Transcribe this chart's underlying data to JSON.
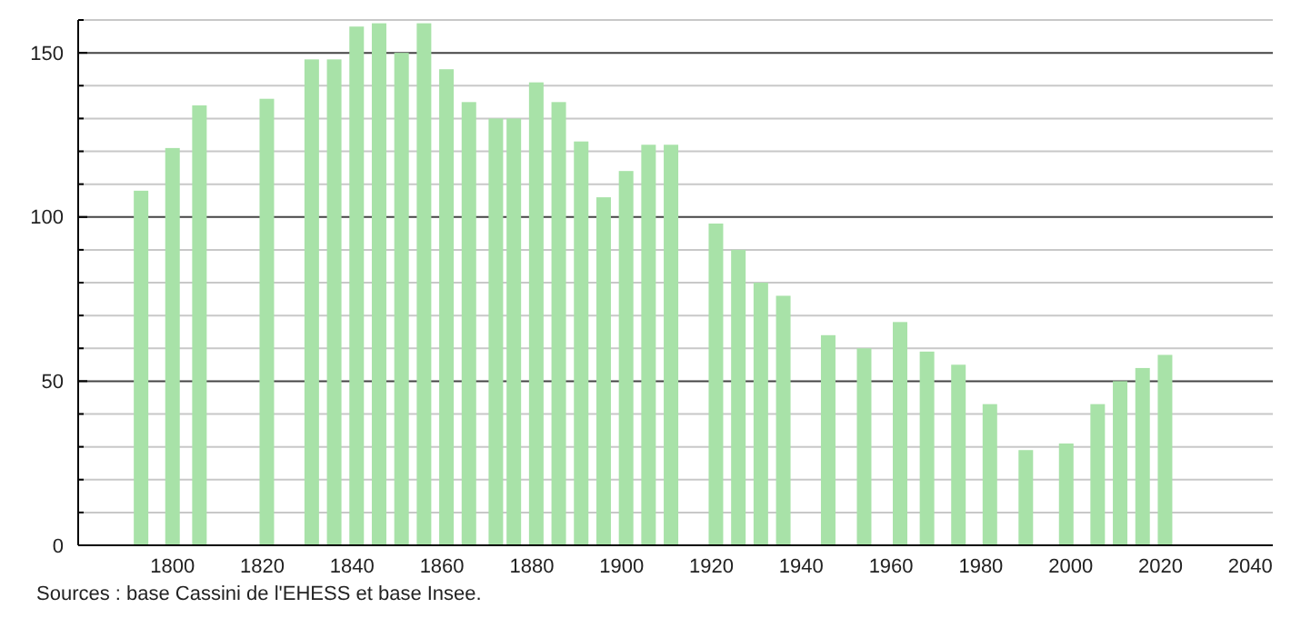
{
  "chart_data": {
    "type": "bar",
    "x": [
      1793,
      1800,
      1806,
      1821,
      1831,
      1836,
      1841,
      1846,
      1851,
      1856,
      1861,
      1866,
      1872,
      1876,
      1881,
      1886,
      1891,
      1896,
      1901,
      1906,
      1911,
      1921,
      1926,
      1931,
      1936,
      1946,
      1954,
      1962,
      1968,
      1975,
      1982,
      1990,
      1999,
      2006,
      2011,
      2016,
      2021
    ],
    "values": [
      108,
      121,
      134,
      136,
      148,
      148,
      158,
      159,
      150,
      159,
      145,
      135,
      130,
      130,
      141,
      135,
      123,
      106,
      114,
      122,
      122,
      98,
      90,
      80,
      76,
      64,
      60,
      68,
      59,
      55,
      43,
      29,
      31,
      43,
      50,
      54,
      58
    ],
    "color": "#a8e2a8",
    "xlim": [
      1779,
      2045
    ],
    "xticks": [
      1800,
      1820,
      1840,
      1860,
      1880,
      1900,
      1920,
      1940,
      1960,
      1980,
      2000,
      2020,
      2040
    ],
    "ylim": [
      0,
      160
    ],
    "yticks": [
      0,
      {
        "value": 10,
        "label": null
      },
      {
        "value": 20,
        "label": null
      },
      {
        "value": 30,
        "label": null
      },
      {
        "value": 40,
        "label": null
      },
      50,
      {
        "value": 60,
        "label": null
      },
      {
        "value": 70,
        "label": null
      },
      {
        "value": 80,
        "label": null
      },
      {
        "value": 90,
        "label": null
      },
      100,
      {
        "value": 110,
        "label": null
      },
      {
        "value": 120,
        "label": null
      },
      {
        "value": 130,
        "label": null
      },
      {
        "value": 140,
        "label": null
      },
      150,
      {
        "value": 160,
        "label": null
      }
    ],
    "grid": "y",
    "annotations": [
      "Sources : base Cassini de l'EHESS et base Insee."
    ]
  }
}
